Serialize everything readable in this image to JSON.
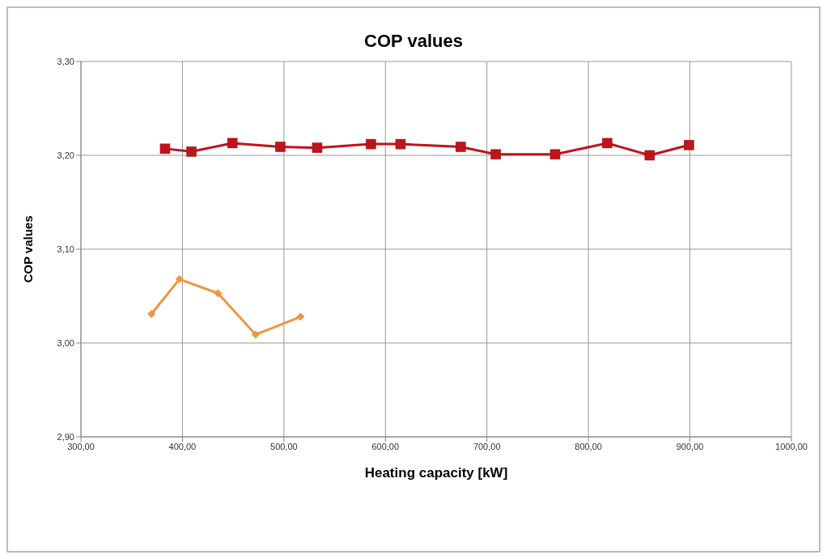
{
  "chart_data": {
    "type": "line",
    "title": "COP values",
    "xlabel": "Heating capacity [kW]",
    "ylabel": "COP values",
    "xlim": [
      300,
      1000
    ],
    "xticks": [
      {
        "value": 300,
        "label": "300,00"
      },
      {
        "value": 400,
        "label": "400,00"
      },
      {
        "value": 500,
        "label": "500,00"
      },
      {
        "value": 600,
        "label": "600,00"
      },
      {
        "value": 700,
        "label": "700,00"
      },
      {
        "value": 800,
        "label": "800,00"
      },
      {
        "value": 900,
        "label": "900,00"
      },
      {
        "value": 1000,
        "label": "1000,00"
      }
    ],
    "ylim": [
      2.9,
      3.3
    ],
    "yticks": [
      {
        "value": 2.9,
        "label": "2,90"
      },
      {
        "value": 3.0,
        "label": "3,00"
      },
      {
        "value": 3.1,
        "label": "3,10"
      },
      {
        "value": 3.2,
        "label": "3,20"
      },
      {
        "value": 3.3,
        "label": "3,30"
      }
    ],
    "grid": true,
    "line_style": "solid",
    "series": [
      {
        "color": "#f0953f",
        "marker": "diamond",
        "x": [
          369.5,
          397.1,
          435.0,
          472.1,
          516.3
        ],
        "values": [
          3.031,
          3.068,
          3.053,
          3.009,
          3.028
        ]
      },
      {
        "color": "#c0141c",
        "marker": "square",
        "x": [
          382.9,
          408.9,
          449.2,
          496.5,
          532.8,
          585.7,
          614.9,
          674.1,
          708.8,
          767.2,
          818.5,
          860.4,
          899.1
        ],
        "values": [
          3.207,
          3.204,
          3.213,
          3.209,
          3.208,
          3.212,
          3.212,
          3.209,
          3.201,
          3.201,
          3.213,
          3.2,
          3.211
        ]
      }
    ]
  }
}
